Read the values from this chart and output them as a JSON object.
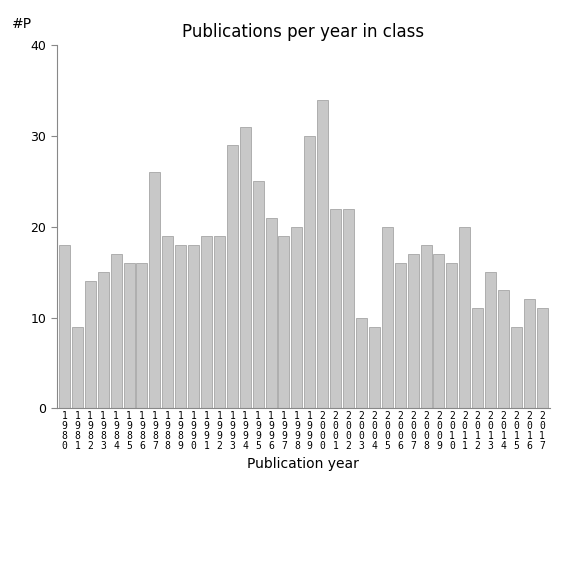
{
  "title": "Publications per year in class",
  "xlabel": "Publication year",
  "ylabel": "#P",
  "years": [
    "1980",
    "1981",
    "1982",
    "1983",
    "1984",
    "1985",
    "1986",
    "1987",
    "1988",
    "1989",
    "1990",
    "1991",
    "1992",
    "1993",
    "1994",
    "1995",
    "1996",
    "1997",
    "1998",
    "1999",
    "2000",
    "2001",
    "2002",
    "2003",
    "2004",
    "2005",
    "2006",
    "2007",
    "2008",
    "2009",
    "2010",
    "2011",
    "2012",
    "2013",
    "2014",
    "2015",
    "2016",
    "2017"
  ],
  "values": [
    18,
    9,
    14,
    15,
    17,
    16,
    16,
    26,
    19,
    18,
    18,
    19,
    19,
    29,
    31,
    25,
    21,
    19,
    20,
    30,
    34,
    22,
    22,
    10,
    9,
    20,
    16,
    17,
    18,
    17,
    16,
    20,
    11,
    15,
    13,
    9,
    12,
    11
  ],
  "bar_color": "#c8c8c8",
  "bar_edge_color": "#999999",
  "ylim": [
    0,
    40
  ],
  "yticks": [
    0,
    10,
    20,
    30,
    40
  ],
  "bg_color": "#ffffff",
  "title_fontsize": 12,
  "axis_label_fontsize": 10,
  "tick_fontsize": 9
}
